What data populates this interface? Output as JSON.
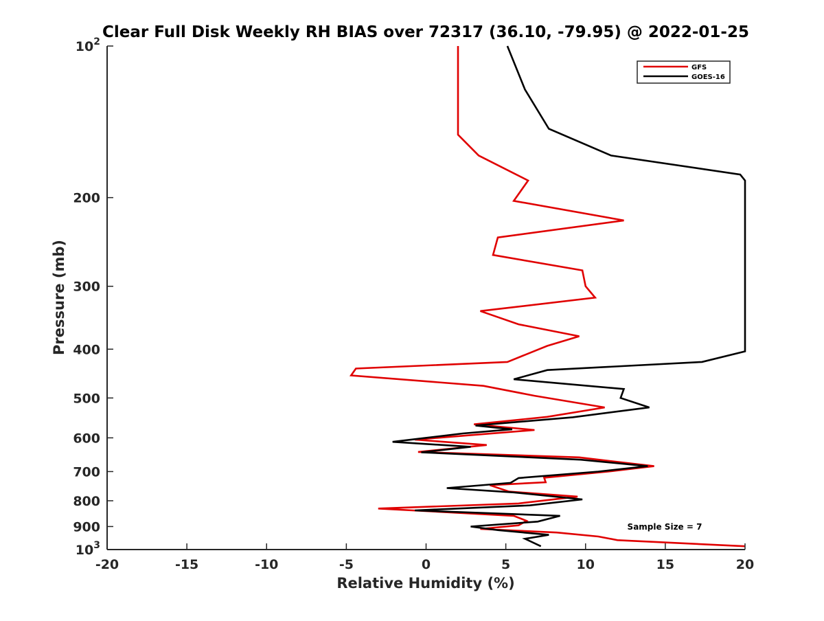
{
  "chart_data": {
    "type": "line",
    "title": "Clear Full Disk Weekly RH BIAS over 72317 (36.10, -79.95) @ 2022-01-25",
    "xlabel": "Relative Humidity (%)",
    "ylabel": "Pressure (mb)",
    "xlim": [
      -20,
      20
    ],
    "ylim": [
      100,
      1000
    ],
    "y_scale": "log",
    "y_reversed": true,
    "grid": false,
    "legend_placement": "top-right",
    "x_ticks": [
      "-20",
      "-15",
      "-10",
      "-5",
      "0",
      "5",
      "10",
      "15",
      "20"
    ],
    "y_ticks": [
      {
        "value": 100,
        "base": "10",
        "exp": "2"
      },
      {
        "value": 200,
        "label": "200"
      },
      {
        "value": 300,
        "label": "300"
      },
      {
        "value": 400,
        "label": "400"
      },
      {
        "value": 500,
        "label": "500"
      },
      {
        "value": 600,
        "label": "600"
      },
      {
        "value": 700,
        "label": "700"
      },
      {
        "value": 800,
        "label": "800"
      },
      {
        "value": 900,
        "label": "900"
      },
      {
        "value": 1000,
        "base": "10",
        "exp": "3"
      }
    ],
    "annotation": "Sample Size = 7",
    "series": [
      {
        "name": "GFS",
        "color": "#e00000",
        "points": [
          [
            2.0,
            100
          ],
          [
            2.0,
            125
          ],
          [
            2.0,
            150
          ],
          [
            3.3,
            165
          ],
          [
            6.4,
            185
          ],
          [
            5.5,
            203
          ],
          [
            12.4,
            222
          ],
          [
            4.5,
            240
          ],
          [
            4.2,
            260
          ],
          [
            9.8,
            279
          ],
          [
            10.0,
            300
          ],
          [
            10.6,
            316
          ],
          [
            3.4,
            336
          ],
          [
            5.8,
            357
          ],
          [
            9.6,
            377
          ],
          [
            7.6,
            394
          ],
          [
            5.1,
            424
          ],
          [
            -4.4,
            437
          ],
          [
            -4.7,
            451
          ],
          [
            3.6,
            473
          ],
          [
            6.8,
            495
          ],
          [
            11.2,
            522
          ],
          [
            7.6,
            545
          ],
          [
            3.0,
            564
          ],
          [
            6.8,
            579
          ],
          [
            -0.7,
            605
          ],
          [
            3.8,
            620
          ],
          [
            -0.5,
            640
          ],
          [
            9.6,
            656
          ],
          [
            14.3,
            683
          ],
          [
            11.4,
            700
          ],
          [
            7.4,
            720
          ],
          [
            7.5,
            735
          ],
          [
            4.0,
            745
          ],
          [
            5.2,
            767
          ],
          [
            9.5,
            785
          ],
          [
            5.8,
            810
          ],
          [
            -3.0,
            829
          ],
          [
            5.5,
            857
          ],
          [
            6.3,
            877
          ],
          [
            5.8,
            895
          ],
          [
            3.4,
            910
          ],
          [
            8.2,
            925
          ],
          [
            10.8,
            942
          ],
          [
            12.0,
            958
          ],
          [
            20.0,
            985
          ]
        ]
      },
      {
        "name": "GOES-16",
        "color": "#000000",
        "points": [
          [
            5.1,
            100
          ],
          [
            6.2,
            122
          ],
          [
            7.7,
            146
          ],
          [
            11.6,
            165
          ],
          [
            19.7,
            180
          ],
          [
            20.0,
            185
          ],
          [
            20.0,
            404
          ],
          [
            17.3,
            424
          ],
          [
            7.6,
            440
          ],
          [
            5.5,
            459
          ],
          [
            12.4,
            480
          ],
          [
            12.2,
            500
          ],
          [
            14.0,
            522
          ],
          [
            9.2,
            546
          ],
          [
            3.1,
            567
          ],
          [
            5.4,
            577
          ],
          [
            2.3,
            588
          ],
          [
            -2.1,
            611
          ],
          [
            2.8,
            625
          ],
          [
            -0.3,
            641
          ],
          [
            9.7,
            663
          ],
          [
            13.9,
            683
          ],
          [
            10.8,
            700
          ],
          [
            5.8,
            721
          ],
          [
            5.3,
            737
          ],
          [
            1.3,
            755
          ],
          [
            5.5,
            770
          ],
          [
            9.8,
            795
          ],
          [
            6.5,
            817
          ],
          [
            -0.7,
            836
          ],
          [
            8.4,
            857
          ],
          [
            7.0,
            880
          ],
          [
            2.8,
            900
          ],
          [
            4.5,
            915
          ],
          [
            7.7,
            935
          ],
          [
            6.2,
            952
          ],
          [
            7.2,
            985
          ]
        ]
      }
    ]
  }
}
